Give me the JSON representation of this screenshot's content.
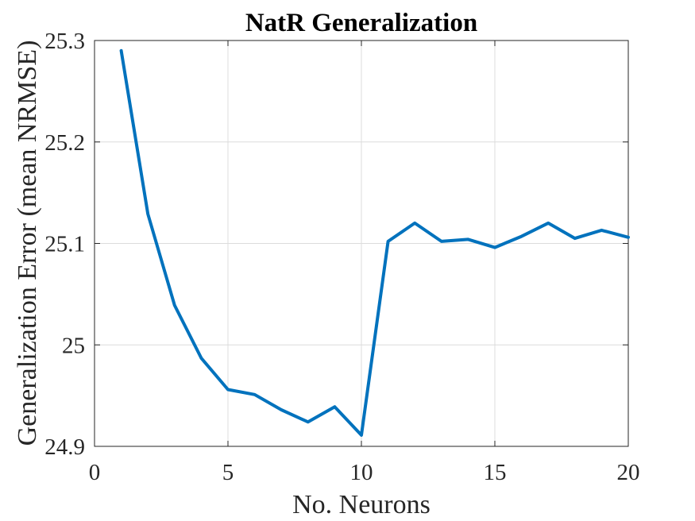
{
  "chart_data": {
    "type": "line",
    "title": "NatR Generalization",
    "xlabel": "No. Neurons",
    "ylabel": "Generalization Error (mean NRMSE)",
    "xlim": [
      0,
      20
    ],
    "ylim": [
      24.9,
      25.3
    ],
    "xticks": [
      0,
      5,
      10,
      15,
      20
    ],
    "xtick_labels": [
      "0",
      "5",
      "10",
      "15",
      "20"
    ],
    "yticks": [
      24.9,
      25.0,
      25.1,
      25.2,
      25.3
    ],
    "ytick_labels": [
      "24.9",
      "25",
      "25.1",
      "25.2",
      "25.3"
    ],
    "grid": true,
    "series": [
      {
        "color": "#0072BD",
        "x": [
          1,
          2,
          3,
          4,
          5,
          6,
          7,
          8,
          9,
          10,
          11,
          12,
          13,
          14,
          15,
          16,
          17,
          18,
          19,
          20
        ],
        "values": [
          25.29,
          25.129,
          25.039,
          24.987,
          24.956,
          24.951,
          24.936,
          24.924,
          24.939,
          24.911,
          25.102,
          25.12,
          25.102,
          25.104,
          25.096,
          25.107,
          25.12,
          25.105,
          25.113,
          25.106
        ]
      }
    ]
  }
}
